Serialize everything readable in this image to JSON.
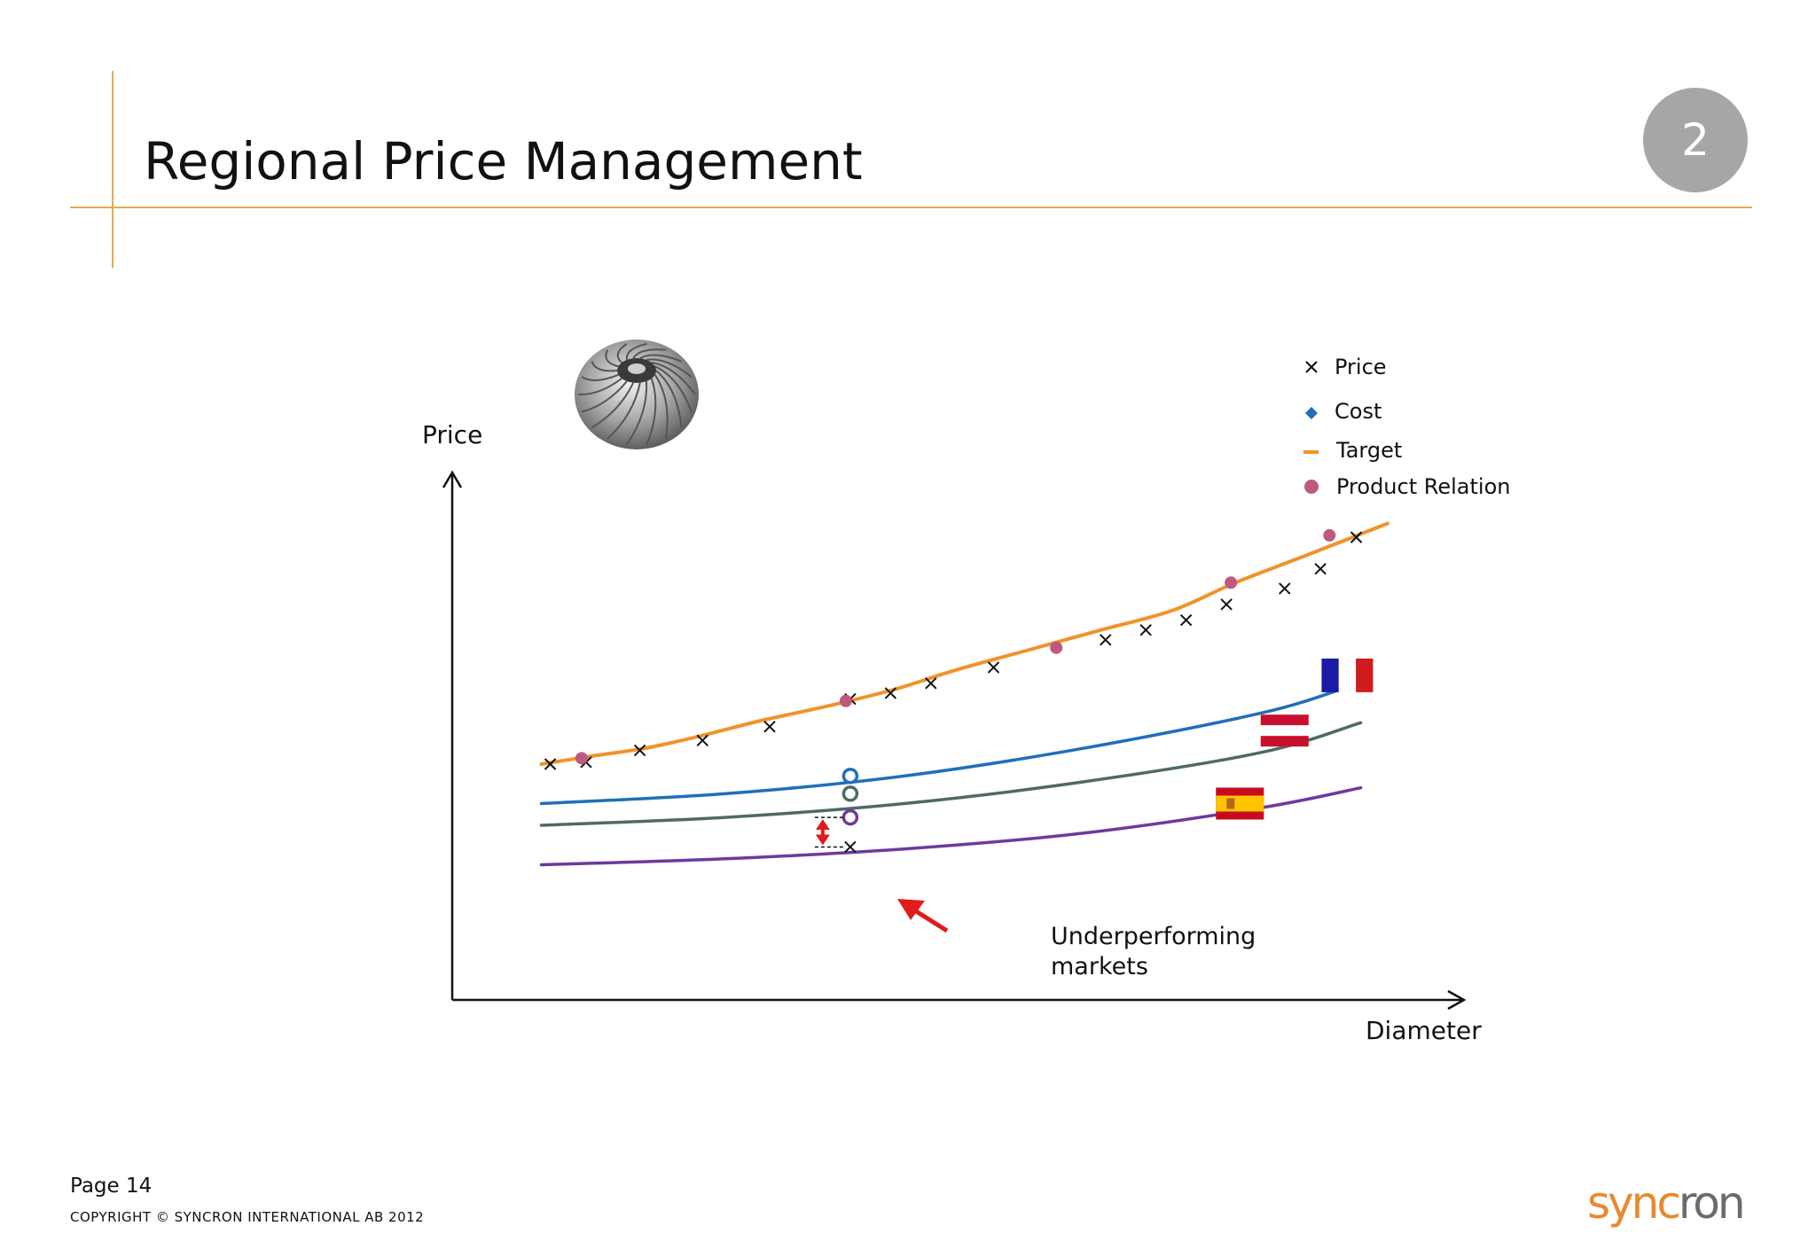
{
  "slide": {
    "title": "Regional Price Management",
    "number": "2"
  },
  "footer": {
    "page": "Page 14",
    "copyright": "COPYRIGHT © SYNCRON INTERNATIONAL AB 2012",
    "logo_text_a": "sync",
    "logo_text_b": "ron",
    "logo_color_a": "#e8892f",
    "logo_color_b": "#6b6b6b"
  },
  "chart_data": {
    "type": "line",
    "title": "",
    "xlabel": "Diameter",
    "ylabel": "Price",
    "xlim": [
      0,
      100
    ],
    "ylim": [
      0,
      100
    ],
    "grid": false,
    "legend": {
      "placement": "top-right",
      "entries": [
        {
          "label": "Price",
          "marker": "x",
          "color": "#111111"
        },
        {
          "label": "Cost",
          "marker": "diamond",
          "color": "#1f6fba"
        },
        {
          "label": "Target",
          "marker": "dash",
          "color": "#f0922b"
        },
        {
          "label": "Product Relation",
          "marker": "circle",
          "color": "#c0587e"
        }
      ]
    },
    "series": [
      {
        "role": "target",
        "color": "#f0922b",
        "x": [
          4.5,
          10,
          16,
          22,
          29,
          37,
          44,
          51,
          59,
          67,
          75,
          82,
          90,
          99
        ],
        "y": [
          40,
          42,
          44,
          47,
          51,
          55,
          59,
          64,
          69,
          74,
          79,
          86,
          93,
          101
        ]
      },
      {
        "role": "price",
        "color": "#111111",
        "x": [
          5.5,
          9.5,
          15.5,
          22.5,
          30,
          39,
          43.5,
          48,
          55,
          67.5,
          72,
          76.5,
          81,
          87.5,
          91.5,
          95.5
        ],
        "y": [
          40,
          40.5,
          43.5,
          46,
          49.5,
          56.5,
          58,
          60.5,
          64.5,
          71.5,
          74,
          76.5,
          80.5,
          84.5,
          89.5,
          97.5
        ]
      },
      {
        "role": "product-relation",
        "color": "#c0587e",
        "x": [
          9,
          38.5,
          62,
          81.5,
          92.5
        ],
        "y": [
          41.5,
          56,
          69.5,
          86,
          98
        ]
      },
      {
        "role": "france",
        "color": "#1f6fba",
        "x": [
          4.5,
          25,
          45,
          65,
          85,
          94.5
        ],
        "y": [
          30,
          32.5,
          37,
          44,
          53,
          59.5
        ]
      },
      {
        "role": "austria",
        "color": "#4f6a64",
        "x": [
          4.5,
          25,
          45,
          65,
          85,
          96
        ],
        "y": [
          24.5,
          26.5,
          30,
          35.5,
          43,
          50.5
        ]
      },
      {
        "role": "spain",
        "color": "#6d3a9c",
        "x": [
          4.5,
          25,
          45,
          65,
          85,
          96
        ],
        "y": [
          14.5,
          16,
          18.5,
          22.5,
          29,
          34
        ]
      }
    ],
    "highlight": {
      "x": 39,
      "markers": [
        {
          "y": 37,
          "color": "#1f6fba"
        },
        {
          "y": 32.5,
          "color": "#4f6a64"
        },
        {
          "y": 26.5,
          "color": "#6d3a9c"
        }
      ],
      "price_y": 19,
      "gap_color": "#e11b1b"
    },
    "flags": [
      {
        "country": "france",
        "x": 94.5,
        "y": 62.5
      },
      {
        "country": "austria",
        "x": 87.5,
        "y": 48.5
      },
      {
        "country": "spain",
        "x": 82.5,
        "y": 30
      }
    ],
    "annotation": {
      "text_line1": "Underperforming",
      "text_line2": "markets",
      "arrow_color": "#e11b1b"
    }
  }
}
